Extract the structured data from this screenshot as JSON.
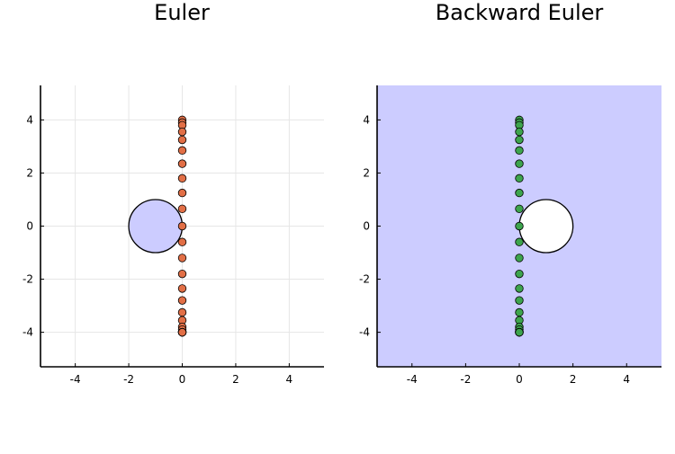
{
  "chart_data": [
    {
      "type": "scatter",
      "title": "Euler",
      "xlabel": "",
      "ylabel": "",
      "xlim": [
        -5.3,
        5.3
      ],
      "ylim": [
        -5.3,
        5.3
      ],
      "xticks": [
        -4,
        -2,
        0,
        2,
        4
      ],
      "yticks": [
        -4,
        -2,
        0,
        2,
        4
      ],
      "tick_labels": {
        "x": [
          "-4",
          "-2",
          "0",
          "2",
          "4"
        ],
        "y": [
          "-4",
          "-2",
          "0",
          "2",
          "4"
        ]
      },
      "grid": true,
      "region": {
        "shape": "disk",
        "center": [
          -1,
          0
        ],
        "radius": 1,
        "shaded": "inside",
        "fill_color": "#ccccff"
      },
      "background_color": "#ffffff",
      "points": {
        "color": "#e26f46",
        "x": [
          0,
          0,
          0,
          0,
          0,
          0,
          0,
          0,
          0,
          0,
          0,
          0,
          0,
          0,
          0,
          0,
          0,
          0,
          0,
          0,
          0,
          0,
          0,
          0,
          0
        ],
        "y": [
          4.0,
          3.9,
          3.8,
          3.55,
          3.25,
          2.85,
          2.35,
          1.8,
          1.25,
          0.65,
          0,
          -0.6,
          -1.2,
          -1.8,
          -2.35,
          -2.8,
          -3.25,
          -3.55,
          -3.8,
          -3.9,
          -4.0,
          -4.0,
          -4.0,
          -4.0,
          -4.0
        ]
      }
    },
    {
      "type": "scatter",
      "title": "Backward Euler",
      "xlabel": "",
      "ylabel": "",
      "xlim": [
        -5.3,
        5.3
      ],
      "ylim": [
        -5.3,
        5.3
      ],
      "xticks": [
        -4,
        -2,
        0,
        2,
        4
      ],
      "yticks": [
        -4,
        -2,
        0,
        2,
        4
      ],
      "tick_labels": {
        "x": [
          "-4",
          "-2",
          "0",
          "2",
          "4"
        ],
        "y": [
          "-4",
          "-2",
          "0",
          "2",
          "4"
        ]
      },
      "grid": false,
      "region": {
        "shape": "disk",
        "center": [
          1,
          0
        ],
        "radius": 1,
        "shaded": "outside",
        "fill_color": "#ccccff"
      },
      "background_color": "#ccccff",
      "points": {
        "color": "#3da44d",
        "x": [
          0,
          0,
          0,
          0,
          0,
          0,
          0,
          0,
          0,
          0,
          0,
          0,
          0,
          0,
          0,
          0,
          0,
          0,
          0,
          0,
          0,
          0,
          0,
          0,
          0
        ],
        "y": [
          4.0,
          3.9,
          3.8,
          3.55,
          3.25,
          2.85,
          2.35,
          1.8,
          1.25,
          0.65,
          0,
          -0.6,
          -1.2,
          -1.8,
          -2.35,
          -2.8,
          -3.25,
          -3.55,
          -3.8,
          -3.9,
          -4.0,
          -4.0,
          -4.0,
          -4.0,
          -4.0
        ]
      }
    }
  ]
}
